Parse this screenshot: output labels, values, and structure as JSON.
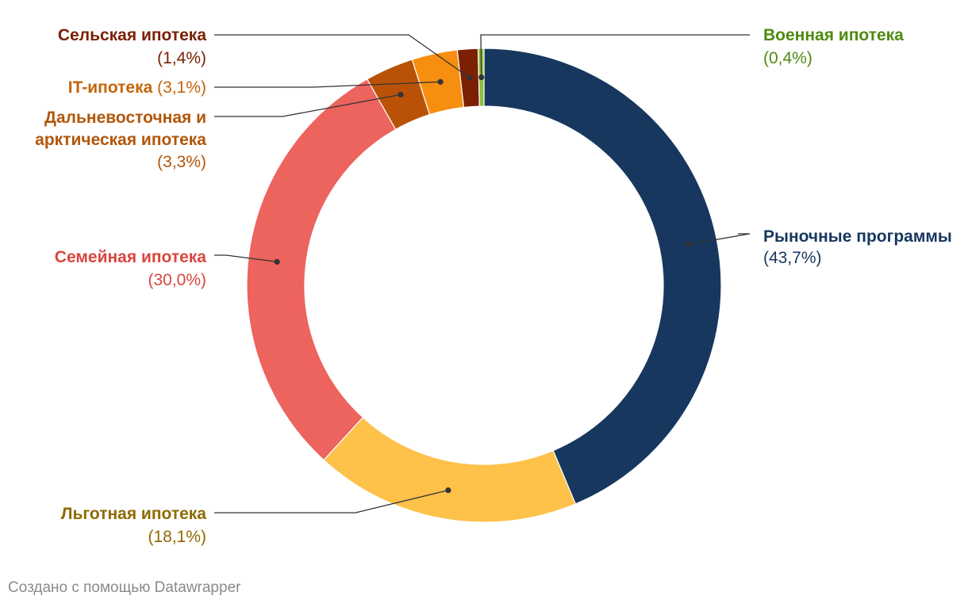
{
  "chart_data": {
    "type": "pie",
    "style": "donut",
    "slices": [
      {
        "label": "Рыночные программы",
        "value": 43.7,
        "pct_text": "(43,7%)",
        "color": "#17375e"
      },
      {
        "label": "Льготная ипотека",
        "value": 18.1,
        "pct_text": "(18,1%)",
        "color": "#fec14a"
      },
      {
        "label": "Семейная ипотека",
        "value": 30.0,
        "pct_text": "(30,0%)",
        "color": "#ed635e"
      },
      {
        "label": "Дальневосточная и арктическая ипотека",
        "value": 3.3,
        "pct_text": "(3,3%)",
        "color": "#b95207"
      },
      {
        "label": "IT-ипотека",
        "value": 3.1,
        "pct_text": "(3,1%)",
        "color": "#f68e0f"
      },
      {
        "label": "Сельская ипотека",
        "value": 1.4,
        "pct_text": "(1,4%)",
        "color": "#7b2004"
      },
      {
        "label": "Военная ипотека",
        "value": 0.4,
        "pct_text": "(0,4%)",
        "color": "#8bbf3c"
      }
    ],
    "label_colors": {
      "Рыночные программы": "#17375e",
      "Льготная ипотека": "#8e6a00",
      "Семейная ипотека": "#d9463f",
      "Дальневосточная и арктическая ипотека": "#b2560a",
      "IT-ипотека": "#c4640a",
      "Сельская ипотека": "#7b2004",
      "Военная ипотека": "#4f8a10"
    }
  },
  "footer": {
    "credit": "Создано с помощью Datawrapper"
  }
}
